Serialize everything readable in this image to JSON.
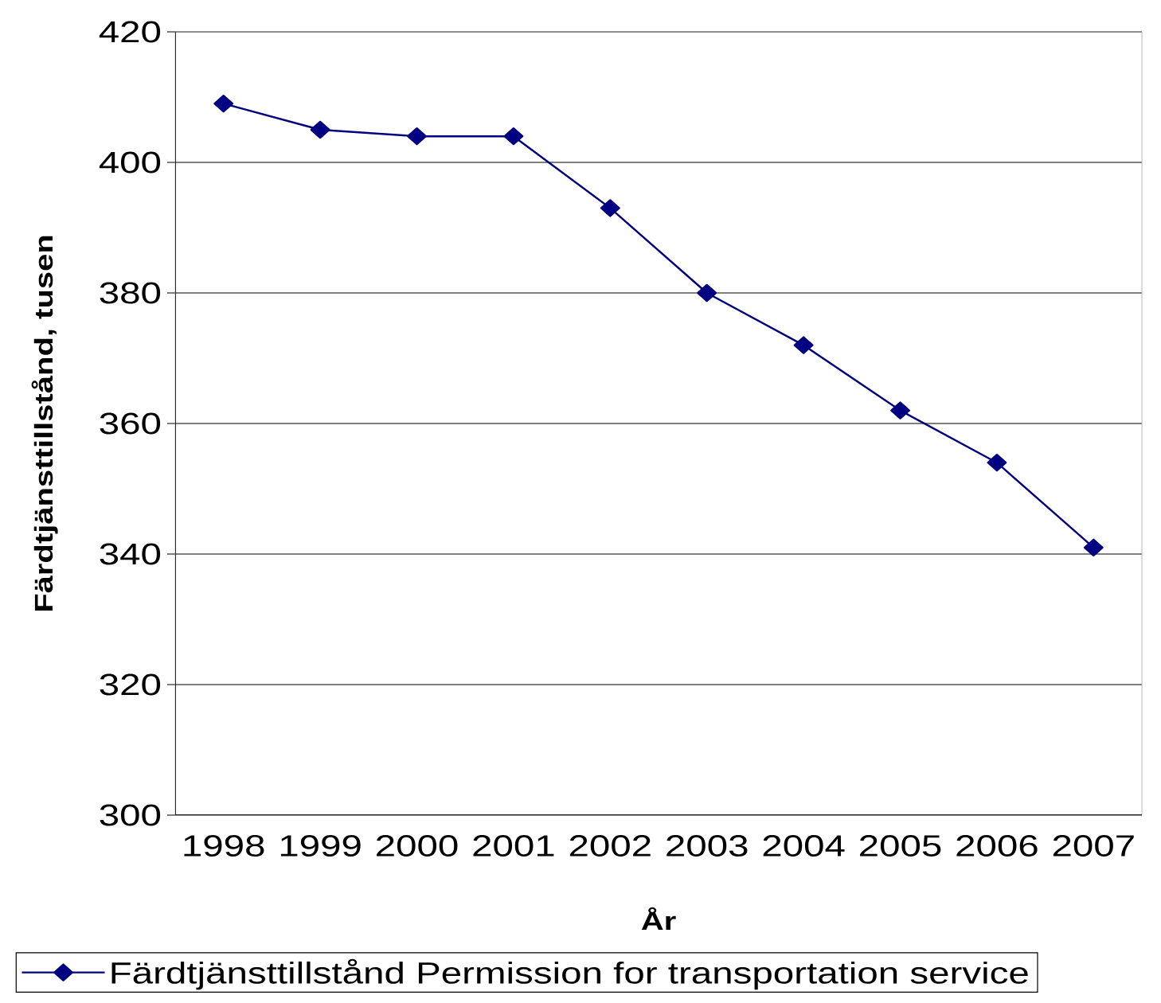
{
  "chart_data": {
    "type": "line",
    "xlabel": "År",
    "ylabel": "Färdtjänsttillstånd, tusen",
    "categories": [
      "1998",
      "1999",
      "2000",
      "2001",
      "2002",
      "2003",
      "2004",
      "2005",
      "2006",
      "2007"
    ],
    "series": [
      {
        "name": "Färdtjänsttillstånd Permission for transportation service",
        "color": "#000080",
        "values": [
          409,
          405,
          404,
          404,
          393,
          380,
          372,
          362,
          354,
          341
        ]
      }
    ],
    "ylim": [
      300,
      420
    ],
    "yticks": [
      300,
      320,
      340,
      360,
      380,
      400,
      420
    ],
    "grid": "y",
    "legend": "bottom",
    "marker": "diamond",
    "line_style": "solid"
  }
}
